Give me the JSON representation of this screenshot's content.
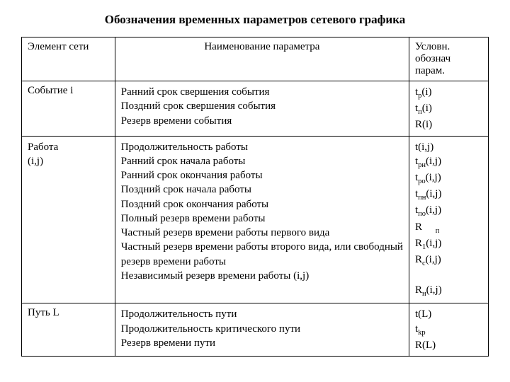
{
  "title": "Обозначения временных параметров сетевого графика",
  "headers": {
    "col1": "Элемент сети",
    "col2": "Наименование параметра",
    "col3": "Условн. обознач парам."
  },
  "rows": [
    {
      "element": "Событие i",
      "names": [
        "Ранний срок свершения события",
        "Поздний срок свершения события",
        "Резерв времени события"
      ],
      "symbols": [
        "t<sub>р</sub>(i)",
        "t<sub>п</sub>(i)",
        "R(i)"
      ]
    },
    {
      "element": "Работа (i,j)",
      "names": [
        "Продолжительность работы",
        "Ранний срок начала работы",
        "Ранний срок окончания работы",
        "Поздний срок начала работы",
        "Поздний срок окончания работы",
        "Полный резерв времени работы",
        "Частный резерв времени работы первого вида",
        "Частный резерв времени работы второго вида, или свободный резерв времени работы",
        "Независимый резерв времени работы (i,j)"
      ],
      "symbols": [
        "t(i,j)",
        "t<sub>рн</sub>(i,j)",
        "t<sub>ро</sub>(i,j)",
        "t<sub>пн</sub>(i,j)",
        "t<sub>по</sub>(i,j)",
        "R&nbsp;&nbsp;&nbsp;&nbsp;&nbsp;<sub>п</sub>",
        "R<sub>1</sub>(i,j)",
        "R<sub>с</sub>(i,j)",
        "&nbsp;",
        "R<sub>н</sub>(i,j)"
      ]
    },
    {
      "element": "Путь L",
      "names": [
        "Продолжительность пути",
        "Продолжительность критического пути",
        "Резерв времени пути"
      ],
      "symbols": [
        "t(L)",
        "t<sub>kp</sub>",
        "R(L)"
      ]
    }
  ]
}
